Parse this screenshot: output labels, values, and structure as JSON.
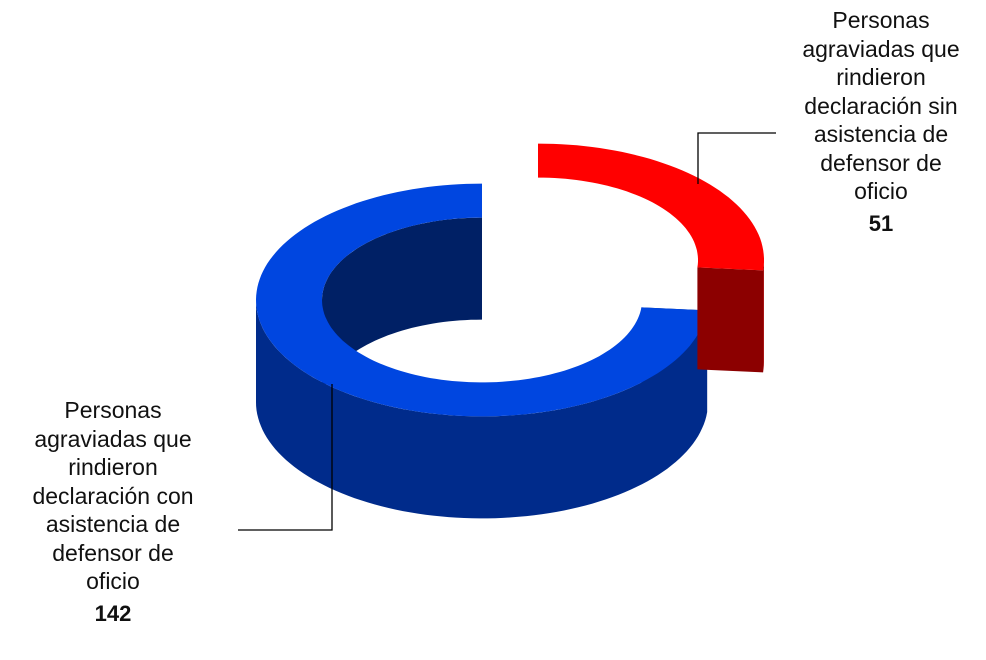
{
  "chart_data": {
    "type": "pie",
    "style": "3d-doughnut-exploded",
    "slices": [
      {
        "label_lines": [
          "Personas",
          "agraviadas que",
          "rindieron",
          "declaración con",
          "asistencia de",
          "defensor de",
          "oficio"
        ],
        "value": 142,
        "value_text": "142",
        "color": "#0046E0"
      },
      {
        "label_lines": [
          "Personas",
          "agraviadas que",
          "rindieron",
          "declaración sin",
          "asistencia de",
          "defensor de",
          "oficio"
        ],
        "value": 51,
        "value_text": "51",
        "color": "#FF0000"
      }
    ],
    "legend": "none"
  }
}
